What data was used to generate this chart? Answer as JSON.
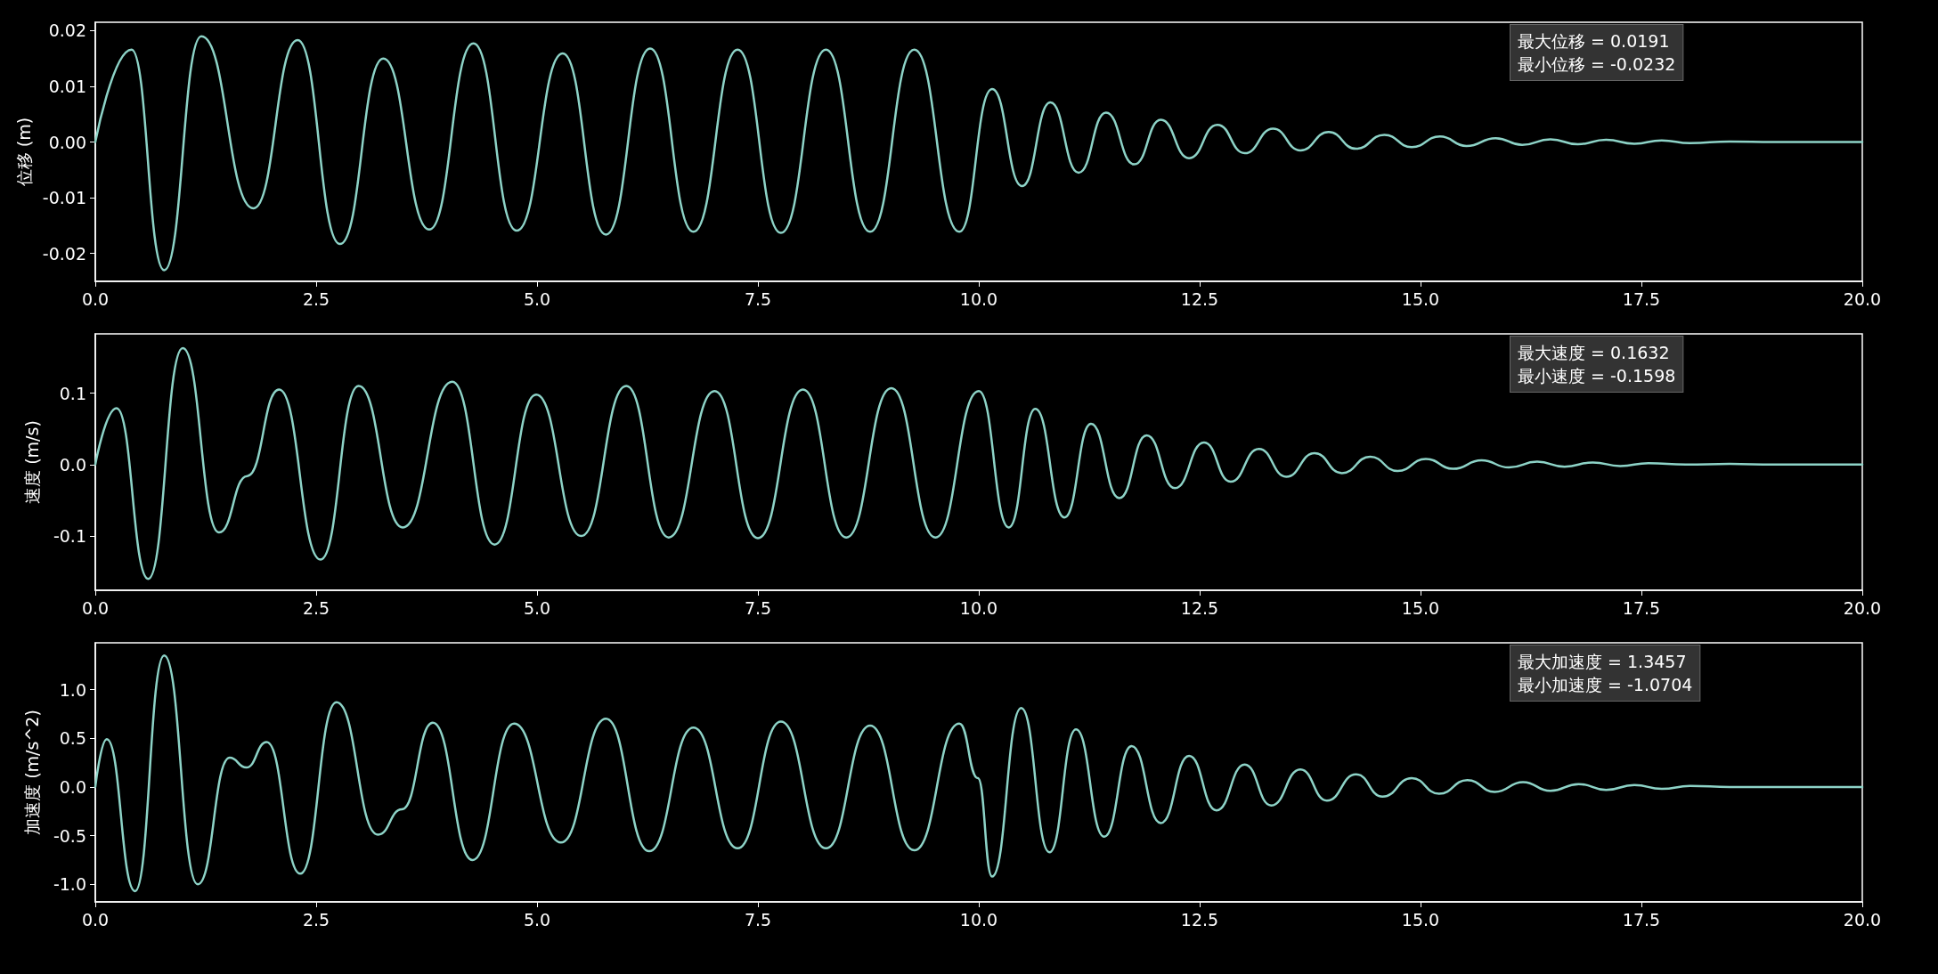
{
  "chart_data": [
    {
      "type": "line",
      "ylabel": "位移 (m)",
      "color": "#8dd3c7",
      "grid": false,
      "marker": "none",
      "line_style": "solid",
      "annotations": [
        "最大位移 = 0.0191",
        "最小位移 = -0.0232"
      ],
      "xlim": [
        0,
        20
      ],
      "xticks": [
        {
          "value": 0,
          "label": "0.0"
        },
        {
          "value": 2.5,
          "label": "2.5"
        },
        {
          "value": 5,
          "label": "5.0"
        },
        {
          "value": 7.5,
          "label": "7.5"
        },
        {
          "value": 10,
          "label": "10.0"
        },
        {
          "value": 12.5,
          "label": "12.5"
        },
        {
          "value": 15,
          "label": "15.0"
        },
        {
          "value": 17.5,
          "label": "17.5"
        },
        {
          "value": 20,
          "label": "20.0"
        }
      ],
      "ylim": [
        -0.025,
        0.0215
      ],
      "yticks": [
        {
          "value": -0.02,
          "label": "-0.02"
        },
        {
          "value": -0.01,
          "label": "-0.01"
        },
        {
          "value": 0,
          "label": "0.00"
        },
        {
          "value": 0.01,
          "label": "0.01"
        },
        {
          "value": 0.02,
          "label": "0.02"
        }
      ],
      "x": [
        0,
        0.41,
        0.78,
        1.2,
        1.79,
        2.29,
        2.77,
        3.26,
        3.78,
        4.28,
        4.77,
        5.29,
        5.78,
        6.28,
        6.77,
        7.27,
        7.76,
        8.27,
        8.77,
        9.27,
        9.78,
        10.15,
        10.49,
        10.81,
        11.13,
        11.44,
        11.76,
        12.06,
        12.38,
        12.7,
        13.01,
        13.33,
        13.64,
        13.96,
        14.27,
        14.59,
        14.9,
        15.22,
        15.52,
        15.85,
        16.15,
        16.47,
        16.78,
        17.1,
        17.42,
        17.73,
        18.05,
        18.5,
        19,
        20
      ],
      "values": [
        0,
        0.0166,
        -0.023,
        0.019,
        -0.0119,
        0.0183,
        -0.0183,
        0.015,
        -0.0157,
        0.0177,
        -0.0159,
        0.0159,
        -0.0166,
        0.0168,
        -0.0161,
        0.0166,
        -0.0163,
        0.0166,
        -0.0161,
        0.0166,
        -0.0161,
        0.0095,
        -0.0079,
        0.0071,
        -0.0055,
        0.0053,
        -0.004,
        0.004,
        -0.0029,
        0.0031,
        -0.002,
        0.0024,
        -0.0015,
        0.0018,
        -0.0012,
        0.0013,
        -0.0009,
        0.001,
        -0.0007,
        0.0007,
        -0.0005,
        0.0005,
        -0.0004,
        0.0004,
        -0.0003,
        0.0003,
        -0.0002,
        0.0001,
        0,
        0
      ]
    },
    {
      "type": "line",
      "ylabel": "速度 (m/s)",
      "color": "#8dd3c7",
      "grid": false,
      "marker": "none",
      "line_style": "solid",
      "annotations": [
        "最大速度 = 0.1632",
        "最小速度 = -0.1598"
      ],
      "xlim": [
        0,
        20
      ],
      "xticks": [
        {
          "value": 0,
          "label": "0.0"
        },
        {
          "value": 2.5,
          "label": "2.5"
        },
        {
          "value": 5,
          "label": "5.0"
        },
        {
          "value": 7.5,
          "label": "7.5"
        },
        {
          "value": 10,
          "label": "10.0"
        },
        {
          "value": 12.5,
          "label": "12.5"
        },
        {
          "value": 15,
          "label": "15.0"
        },
        {
          "value": 17.5,
          "label": "17.5"
        },
        {
          "value": 20,
          "label": "20.0"
        }
      ],
      "ylim": [
        -0.176,
        0.183
      ],
      "yticks": [
        -0.1,
        {
          "value": 0,
          "label": "0.0"
        },
        0.1
      ],
      "x": [
        0,
        0.24,
        0.6,
        0.99,
        1.4,
        1.72,
        2.08,
        2.55,
        2.98,
        3.48,
        4.04,
        4.52,
        4.99,
        5.5,
        6.01,
        6.49,
        7.01,
        7.5,
        8.01,
        8.5,
        9.01,
        9.51,
        10,
        10.34,
        10.64,
        10.97,
        11.27,
        11.59,
        11.9,
        12.22,
        12.55,
        12.85,
        13.17,
        13.48,
        13.8,
        14.11,
        14.43,
        14.74,
        15.06,
        15.37,
        15.69,
        16,
        16.32,
        16.63,
        16.95,
        17.26,
        17.58,
        18,
        18.5,
        19,
        20
      ],
      "values": [
        0,
        0.079,
        -0.16,
        0.163,
        -0.095,
        -0.016,
        0.105,
        -0.133,
        0.11,
        -0.088,
        0.116,
        -0.112,
        0.098,
        -0.1,
        0.11,
        -0.102,
        0.103,
        -0.103,
        0.105,
        -0.102,
        0.107,
        -0.102,
        0.103,
        -0.088,
        0.078,
        -0.074,
        0.057,
        -0.047,
        0.041,
        -0.033,
        0.031,
        -0.024,
        0.022,
        -0.017,
        0.016,
        -0.012,
        0.011,
        -0.009,
        0.008,
        -0.006,
        0.006,
        -0.004,
        0.004,
        -0.003,
        0.003,
        -0.002,
        0.002,
        0,
        0.001,
        0,
        0
      ]
    },
    {
      "type": "line",
      "ylabel": "加速度 (m/s^2)",
      "color": "#8dd3c7",
      "grid": false,
      "marker": "none",
      "line_style": "solid",
      "annotations": [
        "最大加速度 = 1.3457",
        "最小加速度 = -1.0704"
      ],
      "xlim": [
        0,
        20
      ],
      "xticks": [
        {
          "value": 0,
          "label": "0.0"
        },
        {
          "value": 2.5,
          "label": "2.5"
        },
        {
          "value": 5,
          "label": "5.0"
        },
        {
          "value": 7.5,
          "label": "7.5"
        },
        {
          "value": 10,
          "label": "10.0"
        },
        {
          "value": 12.5,
          "label": "12.5"
        },
        {
          "value": 15,
          "label": "15.0"
        },
        {
          "value": 17.5,
          "label": "17.5"
        },
        {
          "value": 20,
          "label": "20.0"
        }
      ],
      "ylim": [
        -1.18,
        1.48
      ],
      "yticks": [
        {
          "value": -1,
          "label": "-1.0"
        },
        -0.5,
        {
          "value": 0,
          "label": "0.0"
        },
        0.5,
        {
          "value": 1,
          "label": "1.0"
        }
      ],
      "x": [
        0,
        0.13,
        0.45,
        0.78,
        1.16,
        1.52,
        1.71,
        1.94,
        2.32,
        2.73,
        3.2,
        3.47,
        3.82,
        4.27,
        4.74,
        5.27,
        5.78,
        6.27,
        6.77,
        7.27,
        7.76,
        8.27,
        8.77,
        9.27,
        9.78,
        9.99,
        10.15,
        10.48,
        10.8,
        11.1,
        11.42,
        11.73,
        12.06,
        12.38,
        12.69,
        13.01,
        13.31,
        13.64,
        13.94,
        14.27,
        14.57,
        14.9,
        15.21,
        15.53,
        15.84,
        16.16,
        16.47,
        16.79,
        17.1,
        17.42,
        17.73,
        18.05,
        18.5,
        19,
        20
      ],
      "values": [
        0,
        0.49,
        -1.07,
        1.35,
        -1,
        0.3,
        0.2,
        0.46,
        -0.89,
        0.87,
        -0.49,
        -0.23,
        0.66,
        -0.75,
        0.65,
        -0.57,
        0.7,
        -0.66,
        0.61,
        -0.63,
        0.67,
        -0.63,
        0.63,
        -0.65,
        0.65,
        0.09,
        -0.92,
        0.81,
        -0.67,
        0.59,
        -0.51,
        0.42,
        -0.37,
        0.32,
        -0.24,
        0.23,
        -0.19,
        0.18,
        -0.14,
        0.13,
        -0.1,
        0.09,
        -0.07,
        0.07,
        -0.05,
        0.05,
        -0.04,
        0.03,
        -0.03,
        0.02,
        -0.02,
        0.01,
        0,
        0,
        0
      ]
    }
  ]
}
